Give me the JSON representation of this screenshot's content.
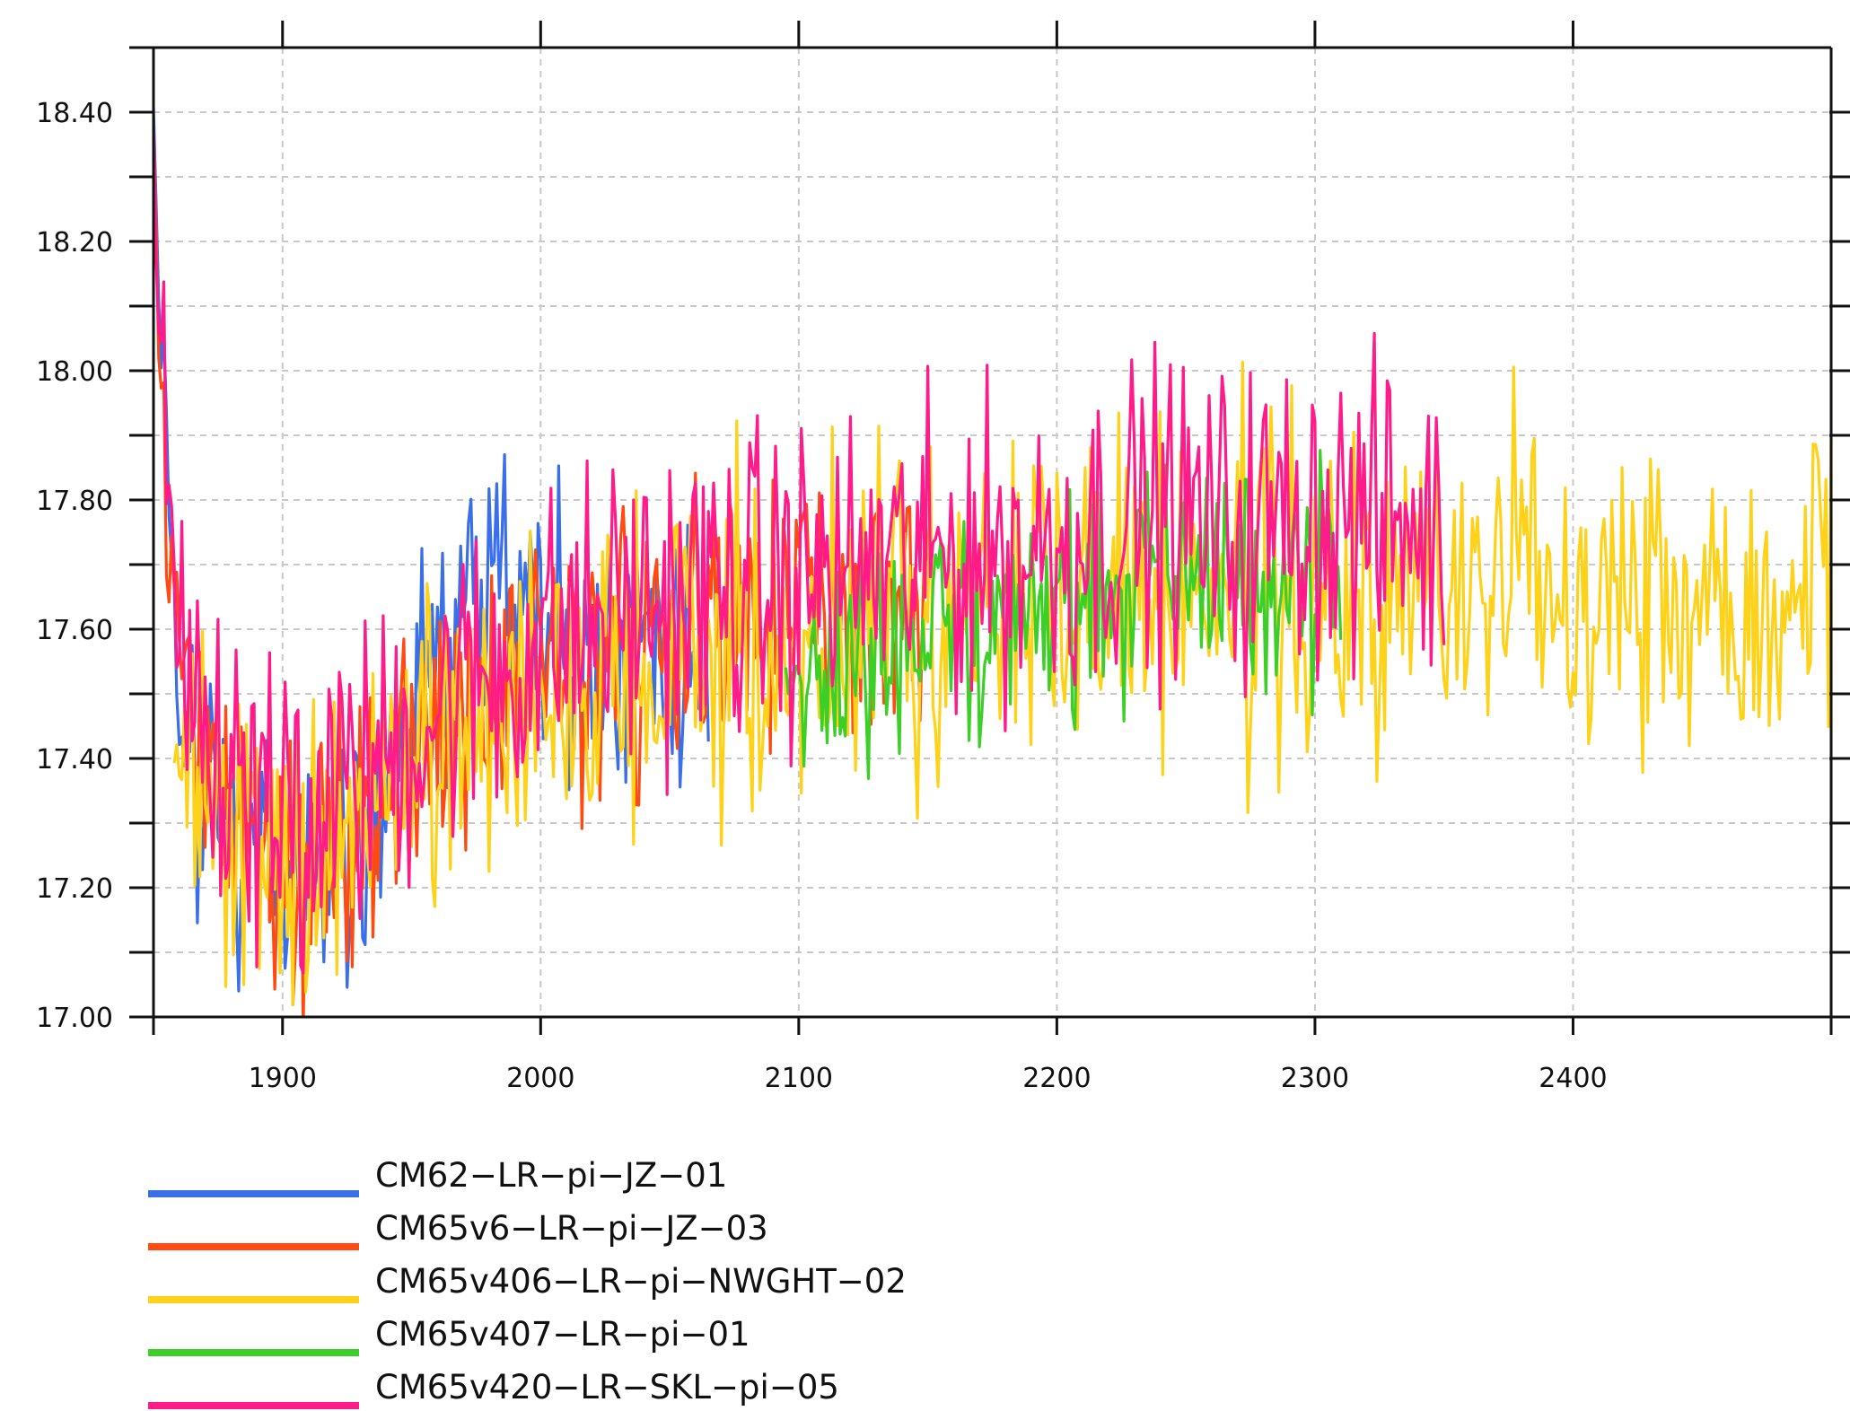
{
  "chart_data": {
    "type": "line",
    "title": "",
    "xlabel": "",
    "ylabel": "",
    "xlim": [
      1850,
      2500
    ],
    "ylim": [
      17.0,
      18.5
    ],
    "x_ticks": [
      1900,
      2000,
      2100,
      2200,
      2300,
      2400
    ],
    "x_tick_labels": [
      "1900",
      "2000",
      "2100",
      "2200",
      "2300",
      "2400"
    ],
    "y_ticks": [
      17.0,
      17.2,
      17.4,
      17.6,
      17.8,
      18.0,
      18.2,
      18.4
    ],
    "y_tick_labels": [
      "17.00",
      "17.20",
      "17.40",
      "17.60",
      "17.80",
      "18.00",
      "18.20",
      "18.40"
    ],
    "grid": true,
    "legend_position": "bottom-left",
    "series": [
      {
        "name": "CM62−LR−pi−JZ−01",
        "color": "#3b6fe8",
        "x": [
          1850,
          1852,
          1855,
          1858,
          1862,
          1868,
          1875,
          1885,
          1895,
          1905,
          1915,
          1925,
          1935,
          1945,
          1955,
          1965,
          1975,
          1985,
          1995,
          2005,
          2015,
          2025,
          2035,
          2045,
          2055,
          2065
        ],
        "y": [
          18.42,
          18.1,
          17.8,
          17.6,
          17.45,
          17.35,
          17.3,
          17.25,
          17.22,
          17.24,
          17.2,
          17.22,
          17.3,
          17.4,
          17.5,
          17.6,
          17.68,
          17.7,
          17.62,
          17.58,
          17.56,
          17.55,
          17.57,
          17.58,
          17.56,
          17.55
        ],
        "amplitude": 0.13
      },
      {
        "name": "CM65v6−LR−pi−JZ−03",
        "color": "#ff4a12",
        "x": [
          1850,
          1852,
          1855,
          1858,
          1862,
          1868,
          1875,
          1885,
          1895,
          1905,
          1915,
          1925,
          1935,
          1945,
          1955,
          1965,
          1975,
          1985,
          1995,
          2005,
          2015,
          2025,
          2035,
          2045,
          2055,
          2065,
          2075,
          2085,
          2095,
          2105,
          2115,
          2125,
          2135,
          2145,
          2150
        ],
        "y": [
          18.4,
          18.05,
          17.8,
          17.6,
          17.48,
          17.4,
          17.35,
          17.3,
          17.27,
          17.26,
          17.28,
          17.3,
          17.33,
          17.38,
          17.42,
          17.46,
          17.5,
          17.52,
          17.54,
          17.56,
          17.57,
          17.58,
          17.58,
          17.57,
          17.58,
          17.6,
          17.61,
          17.62,
          17.62,
          17.63,
          17.63,
          17.64,
          17.64,
          17.64,
          17.64
        ],
        "amplitude": 0.12
      },
      {
        "name": "CM65v406−LR−pi−NWGHT−02",
        "color": "#ffd21a",
        "x": [
          1858,
          1870,
          1885,
          1900,
          1915,
          1930,
          1945,
          1960,
          1975,
          1990,
          2005,
          2020,
          2035,
          2050,
          2065,
          2080,
          2100,
          2120,
          2140,
          2160,
          2180,
          2200,
          2220,
          2240,
          2260,
          2280,
          2300,
          2320,
          2340,
          2360,
          2380,
          2400,
          2420,
          2440,
          2460,
          2480,
          2500
        ],
        "y": [
          17.4,
          17.35,
          17.3,
          17.22,
          17.25,
          17.3,
          17.38,
          17.42,
          17.46,
          17.48,
          17.5,
          17.52,
          17.52,
          17.54,
          17.55,
          17.56,
          17.58,
          17.6,
          17.62,
          17.64,
          17.64,
          17.66,
          17.66,
          17.68,
          17.66,
          17.65,
          17.64,
          17.62,
          17.64,
          17.68,
          17.7,
          17.7,
          17.68,
          17.66,
          17.65,
          17.67,
          17.7
        ],
        "amplitude": 0.15
      },
      {
        "name": "CM65v407−LR−pi−01",
        "color": "#3ccf27",
        "x": [
          2095,
          2110,
          2125,
          2140,
          2155,
          2170,
          2185,
          2200,
          2215,
          2230,
          2245,
          2260,
          2275,
          2290,
          2305,
          2310
        ],
        "y": [
          17.52,
          17.55,
          17.56,
          17.58,
          17.6,
          17.62,
          17.62,
          17.64,
          17.66,
          17.68,
          17.68,
          17.7,
          17.68,
          17.68,
          17.66,
          17.65
        ],
        "amplitude": 0.11
      },
      {
        "name": "CM65v420−LR−SKL−pi−05",
        "color": "#ff1b8a",
        "x": [
          1850,
          1852,
          1855,
          1858,
          1862,
          1868,
          1875,
          1885,
          1895,
          1905,
          1915,
          1925,
          1935,
          1945,
          1955,
          1965,
          1975,
          1985,
          1995,
          2005,
          2015,
          2025,
          2035,
          2045,
          2055,
          2065,
          2075,
          2085,
          2095,
          2105,
          2115,
          2125,
          2135,
          2145,
          2155,
          2165,
          2175,
          2185,
          2195,
          2205,
          2215,
          2225,
          2235,
          2245,
          2255,
          2265,
          2275,
          2285,
          2295,
          2305,
          2315,
          2325,
          2335,
          2345,
          2350
        ],
        "y": [
          18.38,
          18.1,
          17.82,
          17.62,
          17.5,
          17.42,
          17.38,
          17.35,
          17.33,
          17.32,
          17.33,
          17.35,
          17.38,
          17.42,
          17.46,
          17.5,
          17.52,
          17.54,
          17.56,
          17.58,
          17.6,
          17.62,
          17.63,
          17.64,
          17.65,
          17.66,
          17.66,
          17.67,
          17.67,
          17.68,
          17.68,
          17.69,
          17.7,
          17.7,
          17.71,
          17.72,
          17.72,
          17.72,
          17.73,
          17.74,
          17.75,
          17.77,
          17.78,
          17.78,
          17.76,
          17.76,
          17.76,
          17.77,
          17.78,
          17.78,
          17.77,
          17.76,
          17.76,
          17.75,
          17.74
        ],
        "amplitude": 0.14
      }
    ]
  }
}
